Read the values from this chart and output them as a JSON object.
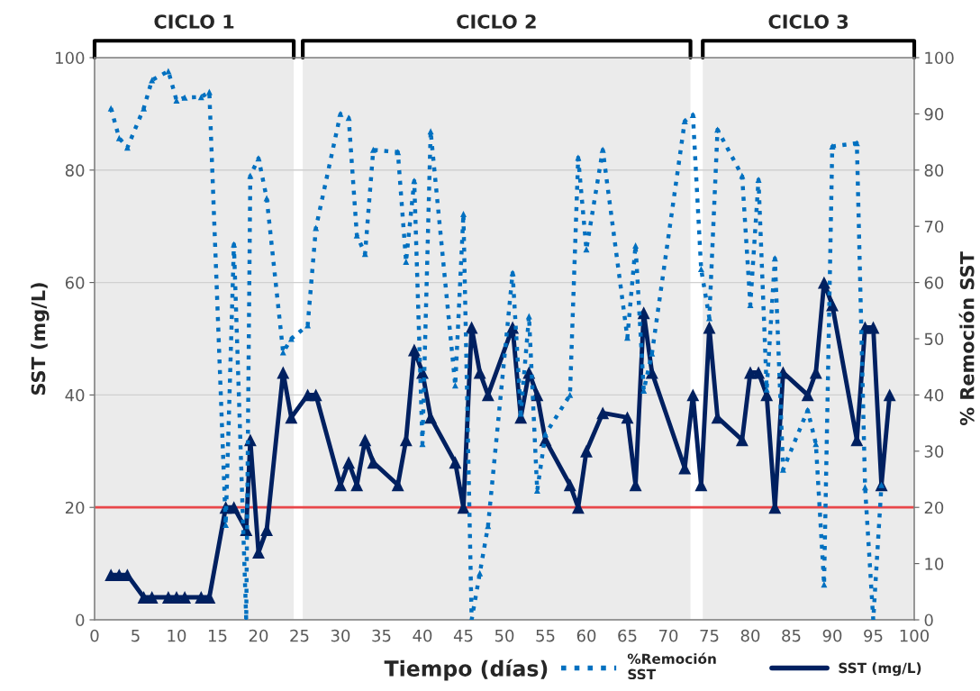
{
  "chart_data": {
    "type": "line",
    "xlabel": "Tiempo (días)",
    "ylabel": "SST (mg/L)",
    "y2label": "% Remoción SST",
    "xlim": [
      0,
      100
    ],
    "xticks": [
      0,
      5,
      10,
      15,
      20,
      25,
      30,
      35,
      40,
      45,
      50,
      55,
      60,
      65,
      70,
      75,
      80,
      85,
      90,
      95,
      100
    ],
    "ylim": [
      0,
      100
    ],
    "yticks": [
      0,
      20,
      40,
      60,
      80,
      100
    ],
    "y2lim": [
      0,
      100
    ],
    "y2ticks": [
      0,
      10,
      20,
      30,
      40,
      50,
      60,
      70,
      80,
      90,
      100
    ],
    "grid": "y",
    "legend": "bottom",
    "marker": "triangle",
    "bands": [
      {
        "axis": "x",
        "from": 0,
        "to": 24.3,
        "label": "CICLO 1",
        "color": "#ebebeb"
      },
      {
        "axis": "x",
        "from": 25.4,
        "to": 72.7,
        "label": "CICLO 2",
        "color": "#ebebeb"
      },
      {
        "axis": "x",
        "from": 74.2,
        "to": 100,
        "label": "CICLO 3",
        "color": "#ebebeb"
      }
    ],
    "ref_lines": [
      {
        "axis": "y",
        "value": 20,
        "color": "#e8474a"
      }
    ],
    "series": [
      {
        "name": "%Remoción SST",
        "color": "#0070c0",
        "axis": "y2",
        "line_style": "dotted",
        "x": [
          2,
          3,
          4,
          6,
          7,
          9,
          10,
          11,
          13,
          14,
          16,
          17,
          18.5,
          19,
          20,
          21,
          23,
          24,
          26,
          27,
          30,
          31,
          32,
          33,
          34,
          37,
          38,
          39,
          40,
          41,
          44,
          45,
          46,
          47,
          48,
          51,
          52,
          53,
          54,
          55,
          58,
          59,
          60,
          62,
          65,
          66,
          67,
          68,
          72,
          73,
          74,
          75,
          76,
          79,
          80,
          81,
          82,
          83,
          84,
          87,
          88,
          89,
          90,
          93,
          94,
          95,
          96
        ],
        "values": [
          91,
          85.7,
          84,
          91,
          96,
          97.6,
          92.4,
          92.9,
          93,
          93.9,
          16.9,
          66.8,
          0,
          79,
          82.1,
          75,
          47.6,
          50,
          52.4,
          69.7,
          90,
          89.3,
          68.4,
          65.1,
          83.6,
          83.2,
          63.7,
          78.1,
          31.3,
          86.9,
          41.7,
          72.2,
          0,
          8.3,
          16.7,
          61.7,
          36.7,
          54,
          23,
          33,
          40,
          82.2,
          65.9,
          83.6,
          50.2,
          66.6,
          40.8,
          47.4,
          88.7,
          89.8,
          62.4,
          53.7,
          87.2,
          79,
          56,
          78.3,
          41,
          64.3,
          26.7,
          37.3,
          31.3,
          6.3,
          84.2,
          84.8,
          23.6,
          0,
          24
        ]
      },
      {
        "name": "SST (mg/L)",
        "color": "#002060",
        "axis": "y",
        "line_style": "solid",
        "x": [
          2,
          3,
          4,
          6,
          7,
          9,
          10,
          11,
          13,
          14,
          16,
          17,
          18.5,
          19,
          20,
          21,
          23,
          24,
          26,
          27,
          30,
          31,
          32,
          33,
          34,
          37,
          38,
          39,
          40,
          41,
          44,
          45,
          46,
          47,
          48,
          51,
          52,
          53,
          54,
          55,
          58,
          59,
          60,
          62,
          65,
          66,
          67,
          68,
          72,
          73,
          74,
          75,
          76,
          79,
          80,
          81,
          82,
          83,
          84,
          87,
          88,
          89,
          90,
          93,
          94,
          95,
          96,
          97
        ],
        "values": [
          8,
          8,
          8,
          4,
          4,
          4,
          4,
          4,
          4,
          4,
          20,
          20,
          16,
          32,
          12,
          16,
          44,
          36,
          40,
          40,
          24,
          28,
          24,
          32,
          28,
          24,
          32,
          48,
          44,
          36,
          28,
          20,
          52,
          44,
          40,
          52,
          36,
          44,
          40,
          32,
          24,
          20,
          30,
          36.8,
          36,
          24,
          54.6,
          44,
          27,
          40,
          24,
          52,
          36,
          32,
          44,
          44,
          40,
          20,
          44,
          40,
          44,
          60,
          56,
          32,
          52,
          52,
          24,
          40
        ]
      }
    ]
  }
}
